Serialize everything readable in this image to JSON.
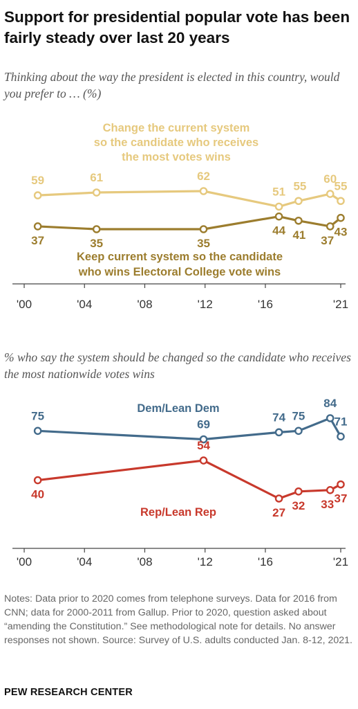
{
  "title": "Support for presidential popular vote has been fairly steady over last 20 years",
  "subtitle_1": "Thinking about the way the president is elected in this country, would you prefer to … (%)",
  "subtitle_2": "% who say the system should be changed so the candidate who receives the most nationwide votes wins",
  "colors": {
    "change": "#e6c97e",
    "keep": "#9c7d2e",
    "dem": "#436b8b",
    "rep": "#c8392c",
    "axis": "#444444"
  },
  "chart_data": [
    {
      "type": "line",
      "xlim": [
        2000,
        2021
      ],
      "ylim": [
        0,
        100
      ],
      "x_ticks": [
        "'00",
        "'04",
        "'08",
        "'12",
        "'16",
        "'21"
      ],
      "x_tick_values": [
        2000,
        2004,
        2008,
        2012,
        2016,
        2021
      ],
      "series": [
        {
          "name": "Change the current system so the candidate who receives the most votes wins",
          "color": "#e6c97e",
          "x": [
            2000.9,
            2004.8,
            2011.9,
            2016.9,
            2018.2,
            2020.3,
            2021.0
          ],
          "values": [
            59,
            61,
            62,
            51,
            55,
            60,
            55
          ],
          "labels": [
            "59",
            "61",
            "62",
            "51",
            "55",
            "60",
            "55"
          ]
        },
        {
          "name": "Keep current system so the candidate who wins Electoral College vote wins",
          "color": "#9c7d2e",
          "x": [
            2000.9,
            2004.8,
            2011.9,
            2016.9,
            2018.2,
            2020.3,
            2021.0
          ],
          "values": [
            37,
            35,
            35,
            44,
            41,
            37,
            43
          ],
          "labels": [
            "37",
            "35",
            "35",
            "44",
            "41",
            "37",
            "43"
          ]
        }
      ]
    },
    {
      "type": "line",
      "xlim": [
        2000,
        2021
      ],
      "ylim": [
        0,
        100
      ],
      "x_ticks": [
        "'00",
        "'04",
        "'08",
        "'12",
        "'16",
        "'21"
      ],
      "x_tick_values": [
        2000,
        2004,
        2008,
        2012,
        2016,
        2021
      ],
      "series": [
        {
          "name": "Dem/Lean Dem",
          "color": "#436b8b",
          "x": [
            2000.9,
            2011.9,
            2016.9,
            2018.2,
            2020.3,
            2021.0
          ],
          "values": [
            75,
            69,
            74,
            75,
            84,
            71
          ],
          "labels": [
            "75",
            "69",
            "74",
            "75",
            "84",
            "71"
          ]
        },
        {
          "name": "Rep/Lean Rep",
          "color": "#c8392c",
          "x": [
            2000.9,
            2011.9,
            2016.9,
            2018.2,
            2020.3,
            2021.0
          ],
          "values": [
            40,
            54,
            27,
            32,
            33,
            37
          ],
          "labels": [
            "40",
            "54",
            "27",
            "32",
            "33",
            "37"
          ]
        }
      ]
    }
  ],
  "notes": "Notes: Data prior to 2020 comes from telephone surveys. Data for 2016 from CNN; data for 2000-2011 from Gallup. Prior to 2020, question asked about “amending the Constitution.” See methodological note for details. No answer responses not shown. Source: Survey of U.S. adults conducted Jan. 8-12, 2021.",
  "brand": "PEW RESEARCH CENTER"
}
